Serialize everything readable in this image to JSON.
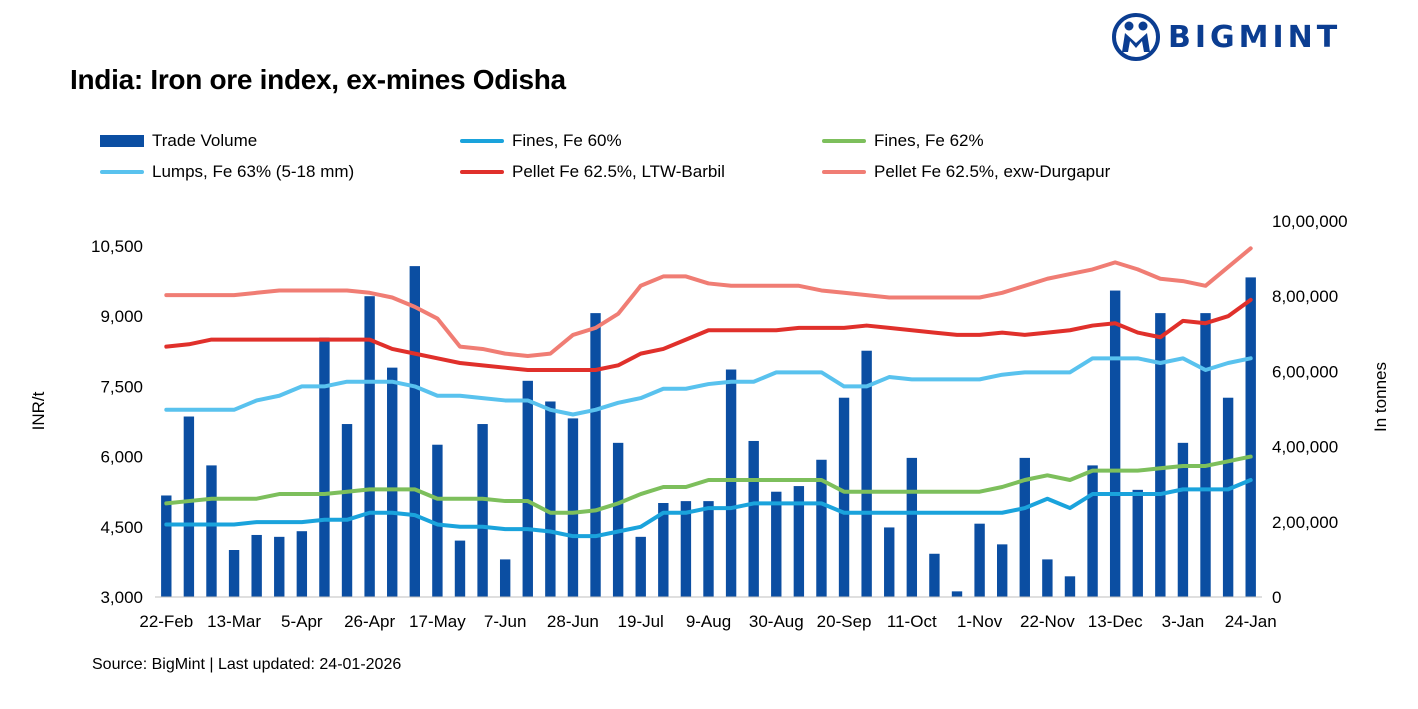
{
  "brand": {
    "name": "BIGMINT"
  },
  "colors": {
    "trade_volume": "#0b4ea2",
    "fines_60": "#1aa3dc",
    "fines_62": "#7dbf5c",
    "lumps_63": "#59c2ee",
    "pellet_barbil": "#e0302b",
    "pellet_durgapur": "#f07d74",
    "logo": "#0b3d91"
  },
  "source_text": "Source: BigMint | Last updated: 24-01-2026",
  "chart_data": {
    "type": "bar",
    "title": "India: Iron ore index, ex-mines Odisha",
    "ylabel": "INR/t",
    "y2label": "In tonnes",
    "ylim": [
      3000,
      10500
    ],
    "y2lim": [
      0,
      1000000
    ],
    "yticks": [
      "3,000",
      "4,500",
      "6,000",
      "7,500",
      "9,000",
      "10,500"
    ],
    "y2ticks": [
      "0",
      "2,00,000",
      "4,00,000",
      "6,00,000",
      "8,00,000",
      "10,00,000"
    ],
    "xtick_labels": [
      "22-Feb",
      "13-Mar",
      "5-Apr",
      "26-Apr",
      "17-May",
      "7-Jun",
      "28-Jun",
      "19-Jul",
      "9-Aug",
      "30-Aug",
      "20-Sep",
      "11-Oct",
      "1-Nov",
      "22-Nov",
      "13-Dec",
      "3-Jan",
      "24-Jan"
    ],
    "legend_placement": "top",
    "grid": false,
    "series": [
      {
        "name": "Trade Volume",
        "axis": "right",
        "kind": "bar",
        "values": [
          270000,
          480000,
          350000,
          125000,
          165000,
          160000,
          175000,
          690000,
          460000,
          800000,
          610000,
          880000,
          405000,
          150000,
          460000,
          100000,
          575000,
          520000,
          475000,
          755000,
          410000,
          160000,
          250000,
          255000,
          255000,
          605000,
          415000,
          280000,
          295000,
          365000,
          530000,
          655000,
          185000,
          370000,
          115000,
          15000,
          195000,
          140000,
          370000,
          100000,
          55000,
          350000,
          815000,
          285000,
          755000,
          410000,
          755000,
          530000,
          850000
        ]
      },
      {
        "name": "Fines, Fe 60%",
        "axis": "left",
        "kind": "line",
        "values": [
          4550,
          4550,
          4550,
          4550,
          4600,
          4600,
          4600,
          4650,
          4650,
          4800,
          4800,
          4750,
          4550,
          4500,
          4500,
          4450,
          4450,
          4400,
          4300,
          4300,
          4400,
          4500,
          4800,
          4800,
          4900,
          4900,
          5000,
          5000,
          5000,
          5000,
          4800,
          4800,
          4800,
          4800,
          4800,
          4800,
          4800,
          4800,
          4900,
          5100,
          4900,
          5200,
          5200,
          5200,
          5200,
          5300,
          5300,
          5300,
          5500
        ]
      },
      {
        "name": "Fines, Fe 62%",
        "axis": "left",
        "kind": "line",
        "values": [
          5000,
          5050,
          5100,
          5100,
          5100,
          5200,
          5200,
          5200,
          5250,
          5300,
          5300,
          5300,
          5100,
          5100,
          5100,
          5050,
          5050,
          4800,
          4800,
          4850,
          5000,
          5200,
          5350,
          5350,
          5500,
          5500,
          5500,
          5500,
          5500,
          5500,
          5250,
          5250,
          5250,
          5250,
          5250,
          5250,
          5250,
          5350,
          5500,
          5600,
          5500,
          5700,
          5700,
          5700,
          5750,
          5800,
          5800,
          5900,
          6000
        ]
      },
      {
        "name": "Lumps, Fe 63% (5-18 mm)",
        "axis": "left",
        "kind": "line",
        "values": [
          7000,
          7000,
          7000,
          7000,
          7200,
          7300,
          7500,
          7500,
          7600,
          7600,
          7600,
          7500,
          7300,
          7300,
          7250,
          7200,
          7200,
          7000,
          6900,
          7000,
          7150,
          7250,
          7450,
          7450,
          7550,
          7600,
          7600,
          7800,
          7800,
          7800,
          7500,
          7500,
          7700,
          7650,
          7650,
          7650,
          7650,
          7750,
          7800,
          7800,
          7800,
          8100,
          8100,
          8100,
          8000,
          8100,
          7850,
          8000,
          8100
        ]
      },
      {
        "name": "Pellet Fe 62.5%, LTW-Barbil",
        "axis": "left",
        "kind": "line",
        "values": [
          8350,
          8400,
          8500,
          8500,
          8500,
          8500,
          8500,
          8500,
          8500,
          8500,
          8300,
          8200,
          8100,
          8000,
          7950,
          7900,
          7850,
          7850,
          7850,
          7850,
          7950,
          8200,
          8300,
          8500,
          8700,
          8700,
          8700,
          8700,
          8750,
          8750,
          8750,
          8800,
          8750,
          8700,
          8650,
          8600,
          8600,
          8650,
          8600,
          8650,
          8700,
          8800,
          8850,
          8650,
          8550,
          8900,
          8850,
          9000,
          9350
        ]
      },
      {
        "name": "Pellet Fe  62.5%, exw-Durgapur",
        "axis": "left",
        "kind": "line",
        "values": [
          9450,
          9450,
          9450,
          9450,
          9500,
          9550,
          9550,
          9550,
          9550,
          9500,
          9400,
          9200,
          8950,
          8350,
          8300,
          8200,
          8150,
          8200,
          8600,
          8750,
          9050,
          9650,
          9850,
          9850,
          9700,
          9650,
          9650,
          9650,
          9650,
          9550,
          9500,
          9450,
          9400,
          9400,
          9400,
          9400,
          9400,
          9500,
          9650,
          9800,
          9900,
          10000,
          10150,
          10000,
          9800,
          9750,
          9650,
          10050,
          10450
        ]
      }
    ]
  }
}
